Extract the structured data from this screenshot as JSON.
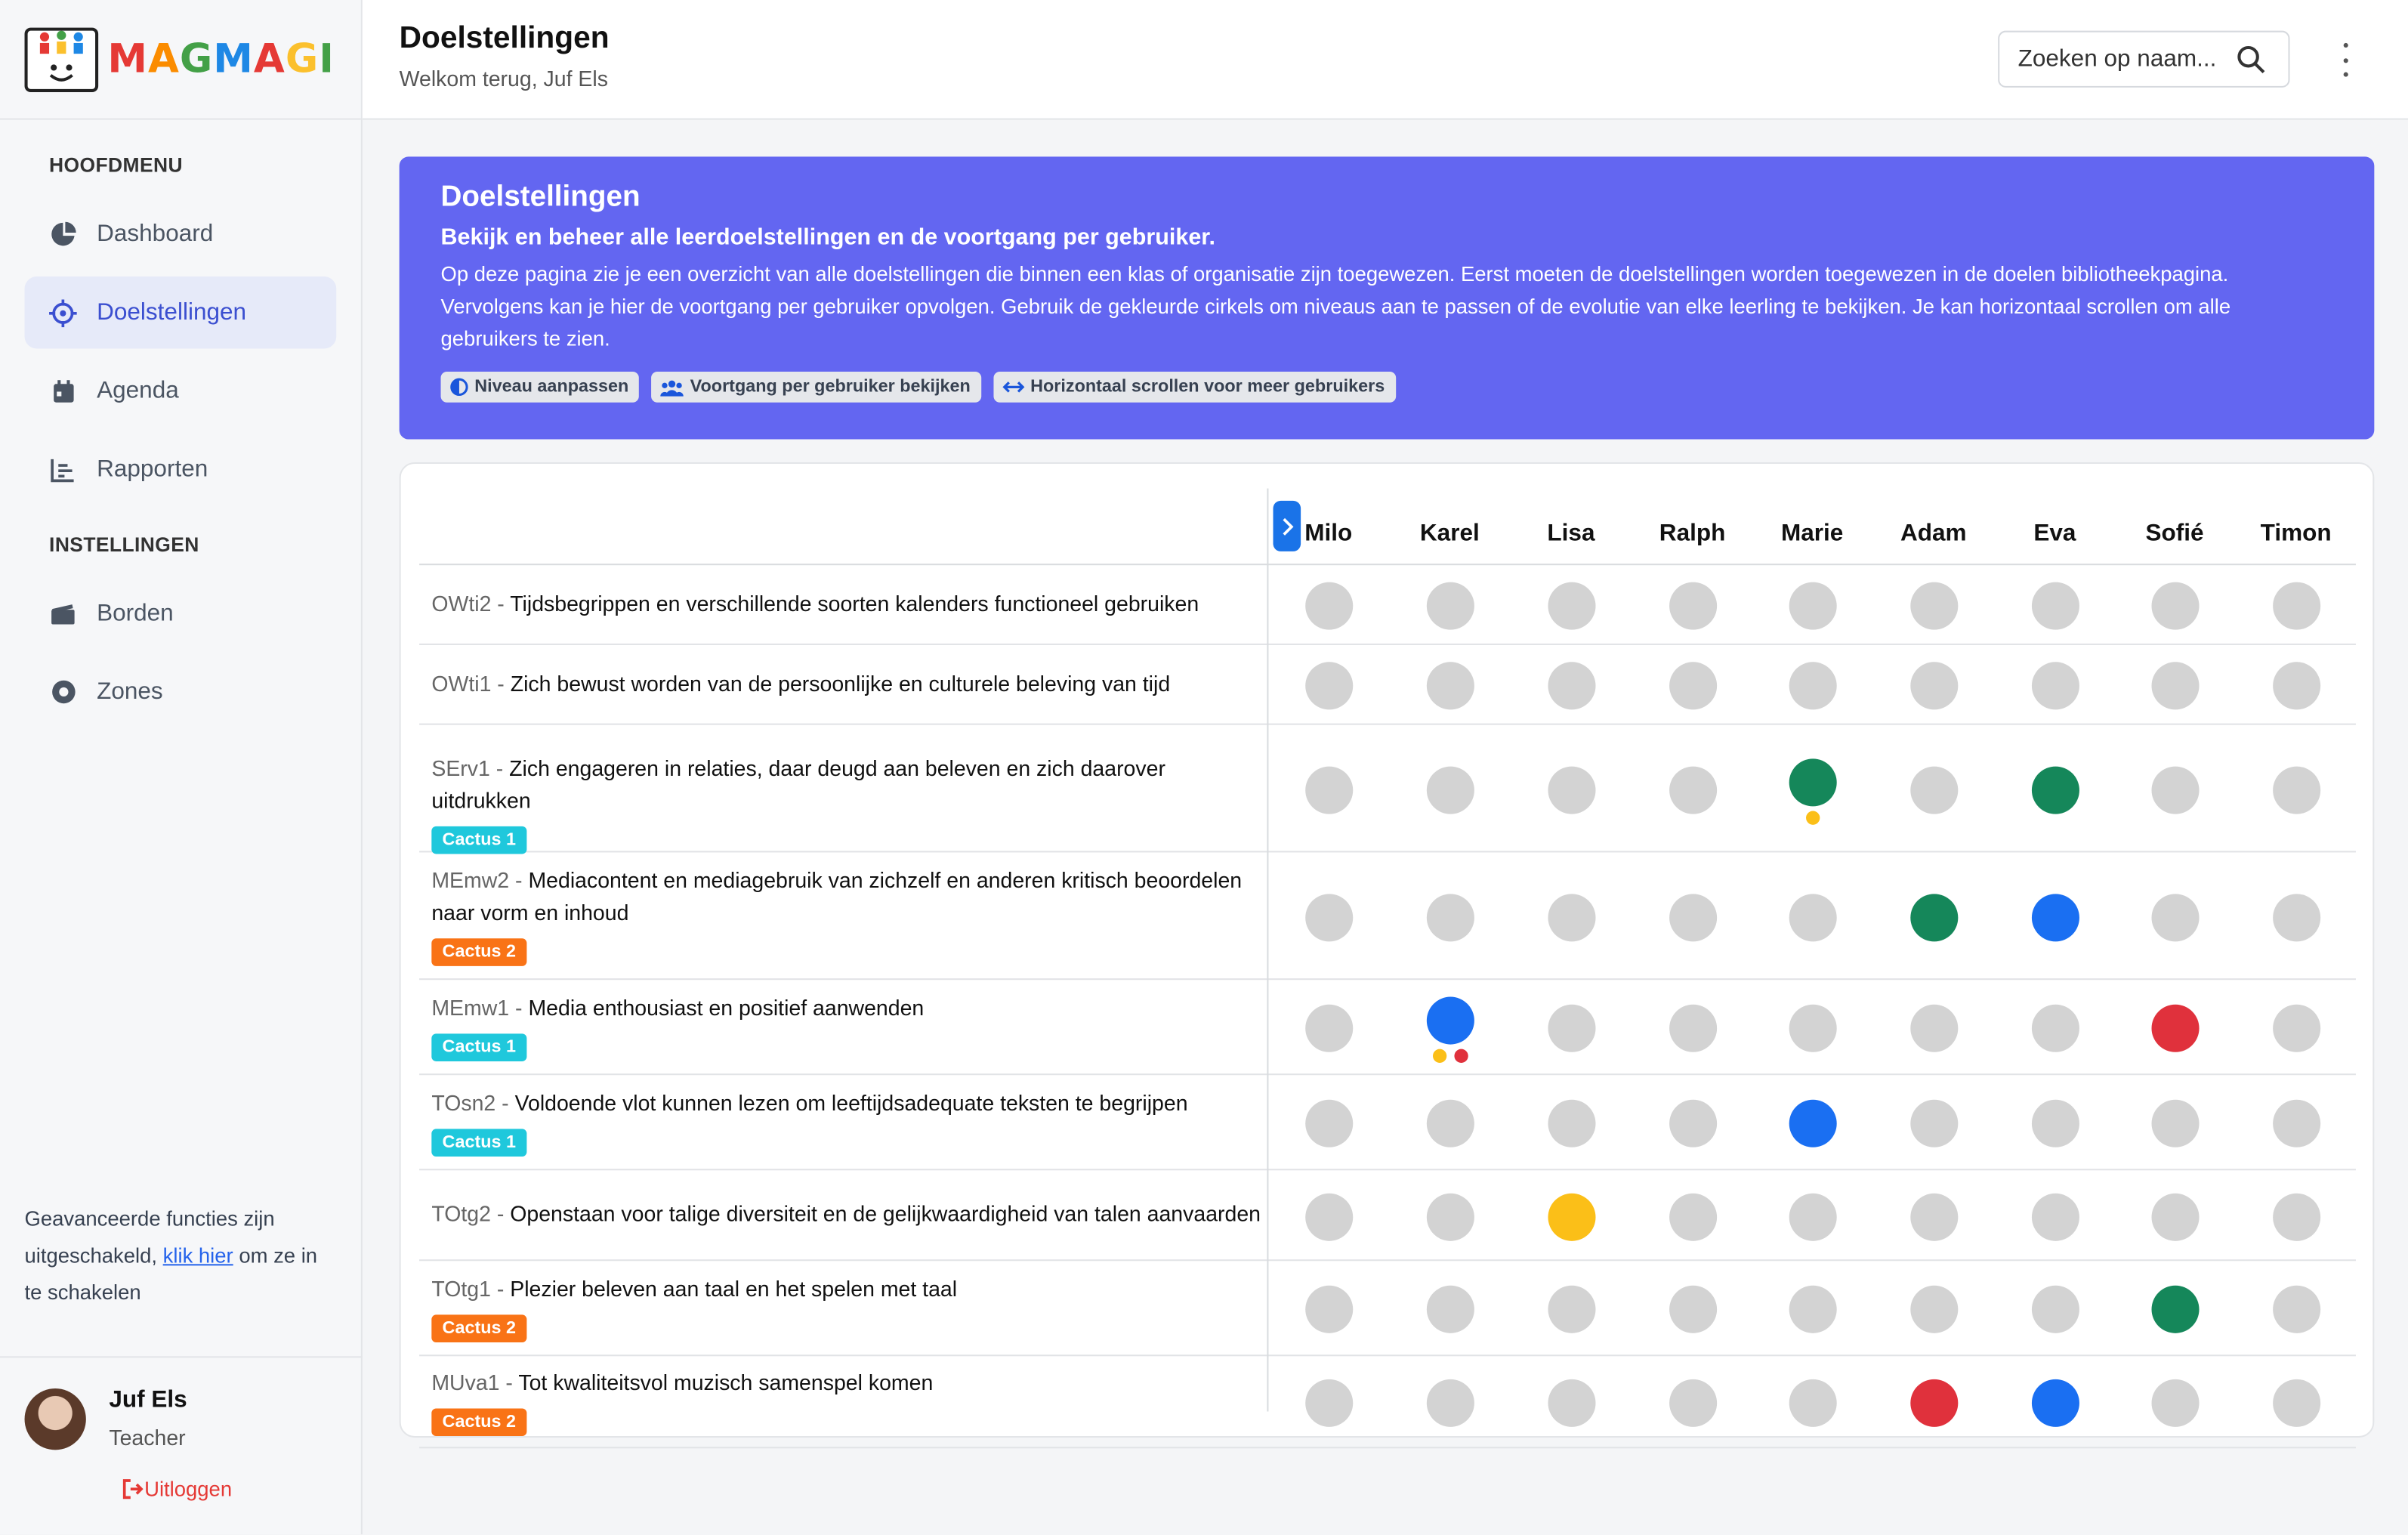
{
  "app": {
    "logo_text": "MAGMAGI"
  },
  "sidebar": {
    "main_section": "HOOFDMENU",
    "main_items": [
      {
        "label": "Dashboard",
        "icon": "pie-chart-icon"
      },
      {
        "label": "Doelstellingen",
        "icon": "target-icon",
        "active": true
      },
      {
        "label": "Agenda",
        "icon": "calendar-icon"
      },
      {
        "label": "Rapporten",
        "icon": "bar-chart-icon"
      }
    ],
    "settings_section": "INSTELLINGEN",
    "settings_items": [
      {
        "label": "Borden",
        "icon": "clapperboard-icon"
      },
      {
        "label": "Zones",
        "icon": "record-circle-icon"
      }
    ],
    "advanced": {
      "before": "Geavanceerde functies zijn uitgeschakeld, ",
      "link": "klik hier",
      "after": " om ze in te schakelen"
    },
    "user": {
      "name": "Juf Els",
      "role": "Teacher",
      "logout": "Uitloggen"
    }
  },
  "header": {
    "title": "Doelstellingen",
    "subtitle": "Welkom terug, Juf Els",
    "search_placeholder": "Zoeken op naam..."
  },
  "banner": {
    "title": "Doelstellingen",
    "subtitle": "Bekijk en beheer alle leerdoelstellingen en de voortgang per gebruiker.",
    "description": "Op deze pagina zie je een overzicht van alle doelstellingen die binnen een klas of organisatie zijn toegewezen. Eerst moeten de doelstellingen worden toegewezen in de doelen bibliotheekpagina. Vervolgens kan je hier de voortgang per gebruiker opvolgen. Gebruik de gekleurde cirkels om niveaus aan te passen of de evolutie van elke leerling te bekijken. Je kan horizontaal scrollen om alle gebruikers te zien.",
    "chips": [
      "Niveau aanpassen",
      "Voortgang per gebruiker bekijken",
      "Horizontaal scrollen voor meer gebruikers"
    ]
  },
  "colors": {
    "grey": "#d3d3d3",
    "green": "#15875a",
    "blue": "#1a6ff2",
    "red": "#e0313c",
    "yellow": "#fbbf18",
    "accent": "#6366f1"
  },
  "table": {
    "users": [
      "Milo",
      "Karel",
      "Lisa",
      "Ralph",
      "Marie",
      "Adam",
      "Eva",
      "Sofié",
      "Timon"
    ],
    "rows": [
      {
        "code": "OWti2",
        "text": "Tijdsbegrippen en verschillende soorten kalenders functioneel gebruiken",
        "tag": "",
        "levels": [
          "grey",
          "grey",
          "grey",
          "grey",
          "grey",
          "grey",
          "grey",
          "grey",
          "grey"
        ],
        "extras": {}
      },
      {
        "code": "OWti1",
        "text": "Zich bewust worden van de persoonlijke en culturele beleving van tijd",
        "tag": "",
        "levels": [
          "grey",
          "grey",
          "grey",
          "grey",
          "grey",
          "grey",
          "grey",
          "grey",
          "grey"
        ],
        "extras": {}
      },
      {
        "code": "SErv1",
        "text": "Zich engageren in relaties, daar deugd aan beleven en zich daarover uitdrukken",
        "tag": "Cactus 1",
        "levels": [
          "grey",
          "grey",
          "grey",
          "grey",
          "green",
          "grey",
          "green",
          "grey",
          "grey"
        ],
        "extras": {
          "4": [
            "yellow"
          ]
        }
      },
      {
        "code": "MEmw2",
        "text": "Mediacontent en mediagebruik van zichzelf en anderen kritisch beoordelen naar vorm en inhoud",
        "tag": "Cactus 2",
        "levels": [
          "grey",
          "grey",
          "grey",
          "grey",
          "grey",
          "green",
          "blue",
          "grey",
          "grey"
        ],
        "extras": {}
      },
      {
        "code": "MEmw1",
        "text": "Media enthousiast en positief aanwenden",
        "tag": "Cactus 1",
        "levels": [
          "grey",
          "blue",
          "grey",
          "grey",
          "grey",
          "grey",
          "grey",
          "red",
          "grey"
        ],
        "extras": {
          "1": [
            "yellow",
            "red"
          ]
        }
      },
      {
        "code": "TOsn2",
        "text": "Voldoende vlot kunnen lezen om leeftijdsadequate teksten te begrijpen",
        "tag": "Cactus 1",
        "levels": [
          "grey",
          "grey",
          "grey",
          "grey",
          "blue",
          "grey",
          "grey",
          "grey",
          "grey"
        ],
        "extras": {}
      },
      {
        "code": "TOtg2",
        "text": "Openstaan voor talige diversiteit en de gelijkwaardigheid van talen aanvaarden",
        "tag": "",
        "levels": [
          "grey",
          "grey",
          "yellow",
          "grey",
          "grey",
          "grey",
          "grey",
          "grey",
          "grey"
        ],
        "extras": {}
      },
      {
        "code": "TOtg1",
        "text": "Plezier beleven aan taal en het spelen met taal",
        "tag": "Cactus 2",
        "levels": [
          "grey",
          "grey",
          "grey",
          "grey",
          "grey",
          "grey",
          "grey",
          "green",
          "grey"
        ],
        "extras": {}
      },
      {
        "code": "MUva1",
        "text": "Tot kwaliteitsvol muzisch samenspel komen",
        "tag": "Cactus 2",
        "levels": [
          "grey",
          "grey",
          "grey",
          "grey",
          "grey",
          "red",
          "blue",
          "grey",
          "grey"
        ],
        "extras": {}
      }
    ]
  }
}
